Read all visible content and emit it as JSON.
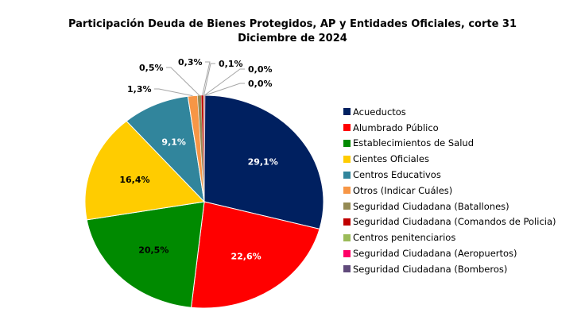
{
  "chart_data": {
    "type": "pie",
    "title": "Participación Deuda de Bienes Protegidos, AP y Entidades Oficiales, corte 31 Diciembre de 2024",
    "legend_position": "right",
    "categories": [
      "Acueductos",
      "Alumbrado Público",
      "Establecimientos de Salud",
      "Cientes Oficiales",
      "Centros Educativos",
      "Otros (Indicar Cuáles)",
      "Seguridad Ciudadana (Batallones)",
      "Seguridad Ciudadana (Comandos de Policia)",
      "Centros penitenciarios",
      "Seguridad Ciudadana (Aeropuertos)",
      "Seguridad Ciudadana (Bomberos)"
    ],
    "values": [
      29.1,
      22.6,
      20.5,
      16.4,
      9.1,
      1.3,
      0.5,
      0.3,
      0.1,
      0.0,
      0.0
    ],
    "labels": [
      "29,1%",
      "22,6%",
      "20,5%",
      "16,4%",
      "9,1%",
      "1,3%",
      "0,5%",
      "0,3%",
      "0,1%",
      "0,0%",
      "0,0%"
    ],
    "colors": [
      "#002060",
      "#FF0000",
      "#008A00",
      "#FFCC00",
      "#31859C",
      "#F79646",
      "#948A54",
      "#C00000",
      "#9BBB59",
      "#FF0066",
      "#604A7B"
    ]
  }
}
